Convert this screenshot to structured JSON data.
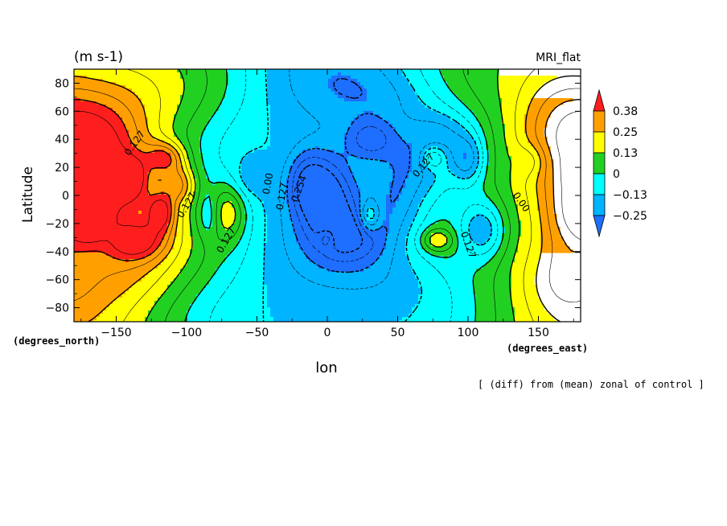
{
  "chart_data": {
    "type": "heatmap",
    "title_left": "(m s-1)",
    "title_right": "MRI_flat",
    "xlabel": "lon",
    "ylabel": "Latitude",
    "x_units": "(degrees_east)",
    "y_units": "(degrees_north)",
    "footnote": "[ (diff) from (mean) zonal of control ]",
    "xlim": [
      -180,
      180
    ],
    "ylim": [
      -90,
      90
    ],
    "x_ticks": [
      -150,
      -100,
      -50,
      0,
      50,
      100,
      150
    ],
    "y_ticks": [
      80,
      60,
      40,
      20,
      0,
      -20,
      -40,
      -60,
      -80
    ],
    "x_tick_labels": [
      "−150",
      "−100",
      "−50",
      "0",
      "50",
      "100",
      "150"
    ],
    "y_tick_labels": [
      "80",
      "60",
      "40",
      "20",
      "0",
      "−20",
      "−40",
      "−60",
      "−80"
    ],
    "levels": [
      -0.25,
      -0.13,
      0,
      0.13,
      0.25,
      0.38
    ],
    "level_labels": [
      "−0.25",
      "−0.13",
      "0",
      "0.13",
      "0.25",
      "0.38"
    ],
    "colors": [
      "#1e6eff",
      "#00b4ff",
      "#00ffff",
      "#22d022",
      "#ffff00",
      "#ffa000",
      "#ff1e1e"
    ],
    "contour_labels": [
      {
        "text": "0.127",
        "lon": -135,
        "lat": 36,
        "angle": -55
      },
      {
        "text": "0.127",
        "lon": -98,
        "lat": -8,
        "angle": -60
      },
      {
        "text": "0.127",
        "lon": -70,
        "lat": -33,
        "angle": -60
      },
      {
        "text": "0.00",
        "lon": -40,
        "lat": 8,
        "angle": -80
      },
      {
        "text": "0.127",
        "lon": -30,
        "lat": -1,
        "angle": -80
      },
      {
        "text": "0.254",
        "lon": -18,
        "lat": 4,
        "angle": -70
      },
      {
        "text": "0.127",
        "lon": 70,
        "lat": 20,
        "angle": -50
      },
      {
        "text": "0.127",
        "lon": 98,
        "lat": -36,
        "angle": 70
      },
      {
        "text": "0.00",
        "lon": 136,
        "lat": -6,
        "angle": 55
      }
    ],
    "centers": [
      {
        "lon": -170,
        "lat": -12,
        "amp": 0.45,
        "w": 9,
        "h": 12
      },
      {
        "lon": -155,
        "lat": 5,
        "amp": 0.18,
        "w": 18,
        "h": 26
      },
      {
        "lon": -162,
        "lat": 48,
        "amp": 0.15,
        "w": 24,
        "h": 24
      },
      {
        "lon": -140,
        "lat": 12,
        "amp": 0.22,
        "w": 8,
        "h": 10
      },
      {
        "lon": -115,
        "lat": 27,
        "amp": 0.26,
        "w": 10,
        "h": 8
      },
      {
        "lon": -118,
        "lat": -12,
        "amp": 0.28,
        "w": 7,
        "h": 10
      },
      {
        "lon": -135,
        "lat": -33,
        "amp": 0.22,
        "w": 14,
        "h": 9
      },
      {
        "lon": -105,
        "lat": 8,
        "amp": 0.22,
        "w": 8,
        "h": 9
      },
      {
        "lon": -70,
        "lat": -12,
        "amp": 0.2,
        "w": 9,
        "h": 14
      },
      {
        "lon": -130,
        "lat": -5,
        "amp": 0.12,
        "w": 30,
        "h": 40
      },
      {
        "lon": -150,
        "lat": -50,
        "amp": 0.1,
        "w": 30,
        "h": 20
      },
      {
        "lon": -120,
        "lat": 70,
        "amp": 0.05,
        "w": 40,
        "h": 20
      },
      {
        "lon": -85,
        "lat": -15,
        "amp": -0.14,
        "w": 6,
        "h": 12
      },
      {
        "lon": -55,
        "lat": 12,
        "amp": -0.08,
        "w": 8,
        "h": 10
      },
      {
        "lon": 0,
        "lat": 0,
        "amp": -0.27,
        "w": 14,
        "h": 22
      },
      {
        "lon": -15,
        "lat": 10,
        "amp": -0.18,
        "w": 10,
        "h": 16
      },
      {
        "lon": 20,
        "lat": -30,
        "amp": -0.18,
        "w": 18,
        "h": 14
      },
      {
        "lon": 30,
        "lat": 40,
        "amp": -0.2,
        "w": 12,
        "h": 10
      },
      {
        "lon": 60,
        "lat": 25,
        "amp": -0.12,
        "w": 18,
        "h": 18
      },
      {
        "lon": 85,
        "lat": 45,
        "amp": -0.12,
        "w": 15,
        "h": 12
      },
      {
        "lon": 100,
        "lat": 25,
        "amp": -0.2,
        "w": 8,
        "h": 12
      },
      {
        "lon": 110,
        "lat": -25,
        "amp": -0.28,
        "w": 12,
        "h": 15
      },
      {
        "lon": 50,
        "lat": -5,
        "amp": -0.1,
        "w": 12,
        "h": 16
      },
      {
        "lon": 40,
        "lat": 70,
        "amp": -0.08,
        "w": 30,
        "h": 15
      },
      {
        "lon": 60,
        "lat": -60,
        "amp": -0.05,
        "w": 40,
        "h": 15
      },
      {
        "lon": 30,
        "lat": -15,
        "amp": 0.2,
        "w": 5,
        "h": 8
      },
      {
        "lon": 75,
        "lat": 27,
        "amp": 0.2,
        "w": 6,
        "h": 6
      },
      {
        "lon": 78,
        "lat": -32,
        "amp": 0.2,
        "w": 8,
        "h": 6
      },
      {
        "lon": 0,
        "lat": -30,
        "amp": 0.14,
        "w": 4,
        "h": 5
      },
      {
        "lon": 165,
        "lat": 50,
        "amp": 0.18,
        "w": 22,
        "h": 30
      },
      {
        "lon": 170,
        "lat": -15,
        "amp": 0.22,
        "w": 14,
        "h": 22
      },
      {
        "lon": 178,
        "lat": 15,
        "amp": 0.26,
        "w": 5,
        "h": 8
      },
      {
        "lon": 145,
        "lat": 25,
        "amp": -0.1,
        "w": 8,
        "h": 8
      },
      {
        "lon": 165,
        "lat": -60,
        "amp": 0.12,
        "w": 20,
        "h": 18
      }
    ],
    "grid": false,
    "colorbar": "right"
  }
}
